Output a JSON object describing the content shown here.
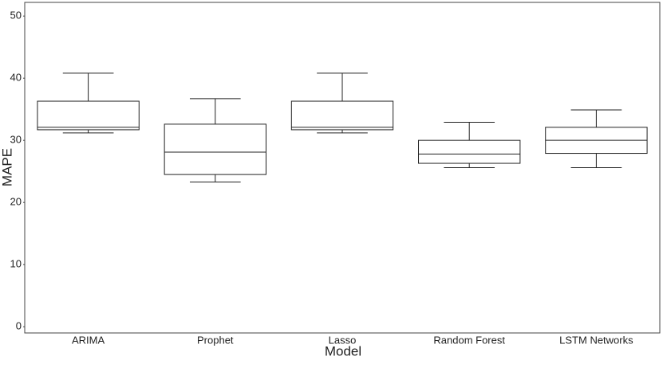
{
  "chart_data": {
    "type": "box",
    "x_label": "Model",
    "y_label": "MAPE",
    "categories": [
      "ARIMA",
      "Prophet",
      "Lasso",
      "Random Forest",
      "LSTM Networks"
    ],
    "boxes": [
      {
        "min": 31.2,
        "q1": 31.7,
        "median": 32.1,
        "q3": 36.3,
        "max": 40.8
      },
      {
        "min": 23.3,
        "q1": 24.5,
        "median": 28.1,
        "q3": 32.6,
        "max": 36.7
      },
      {
        "min": 31.2,
        "q1": 31.7,
        "median": 32.1,
        "q3": 36.3,
        "max": 40.8
      },
      {
        "min": 25.6,
        "q1": 26.3,
        "median": 27.8,
        "q3": 30.0,
        "max": 32.9
      },
      {
        "min": 25.6,
        "q1": 27.9,
        "median": 30.0,
        "q3": 32.1,
        "max": 34.9
      }
    ],
    "color": "#ffffff",
    "edge_color": "#222222",
    "ylim": [
      -1,
      52.2
    ],
    "yticks": [
      0,
      10,
      20,
      30,
      40,
      50
    ]
  }
}
